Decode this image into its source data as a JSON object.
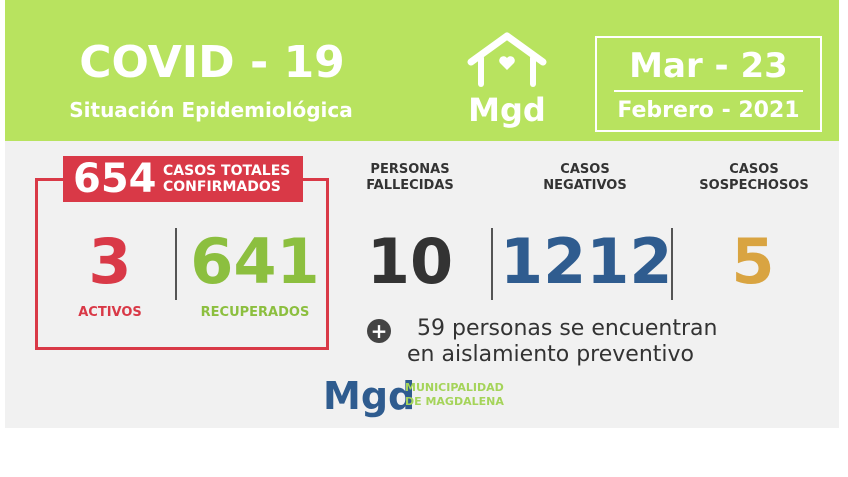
{
  "header": {
    "title": "COVID - 19",
    "subtitle": "Situación Epidemiológica",
    "logo_text": "Mgd",
    "date_day": "Mar - 23",
    "date_month": "Febrero - 2021"
  },
  "totals": {
    "count": "654",
    "label_line1": "CASOS TOTALES",
    "label_line2": "CONFIRMADOS"
  },
  "active": {
    "value": "3",
    "label": "ACTIVOS"
  },
  "recovered": {
    "value": "641",
    "label": "RECUPERADOS"
  },
  "deceased": {
    "label_line1": "PERSONAS",
    "label_line2": "FALLECIDAS",
    "value": "10"
  },
  "negative": {
    "label_line1": "CASOS",
    "label_line2": "NEGATIVOS",
    "value": "1212"
  },
  "suspected": {
    "label_line1": "CASOS",
    "label_line2": "SOSPECHOSOS",
    "value": "5"
  },
  "note": {
    "line1": "59 personas se encuentran",
    "line2": "en aislamiento preventivo",
    "icon": "plus-icon"
  },
  "footer_logo": {
    "mgd": "Mgd",
    "line1": "MUNICIPALIDAD",
    "line2": "DE MAGDALENA"
  },
  "colors": {
    "header_green": "#b8e35f",
    "red": "#d93947",
    "green": "#8cbf3f",
    "blue": "#2f5c8f",
    "orange": "#d9a441",
    "dark": "#333333"
  }
}
